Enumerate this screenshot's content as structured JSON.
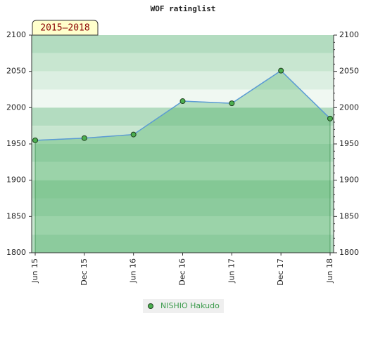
{
  "chart_data": {
    "type": "area",
    "title": "WOF ratinglist",
    "annotation": "2015–2018",
    "categories": [
      "Jun 15",
      "Dec 15",
      "Jun 16",
      "Dec 16",
      "Jun 17",
      "Dec 17",
      "Jun 18"
    ],
    "series": [
      {
        "name": "NISHIO Hakudo",
        "color": "#4caf50",
        "line_color": "#5b9bd5",
        "values": [
          1955,
          1958,
          1963,
          2009,
          2006,
          2051,
          1985
        ]
      }
    ],
    "ylim": [
      1800,
      2100
    ],
    "yticks": [
      1800,
      1850,
      1900,
      1950,
      2000,
      2050,
      2100
    ],
    "y2lim": [
      1800,
      2100
    ],
    "y2ticks": [
      1800,
      1850,
      1900,
      1950,
      2000,
      2050,
      2100
    ],
    "legend": "bottom"
  }
}
